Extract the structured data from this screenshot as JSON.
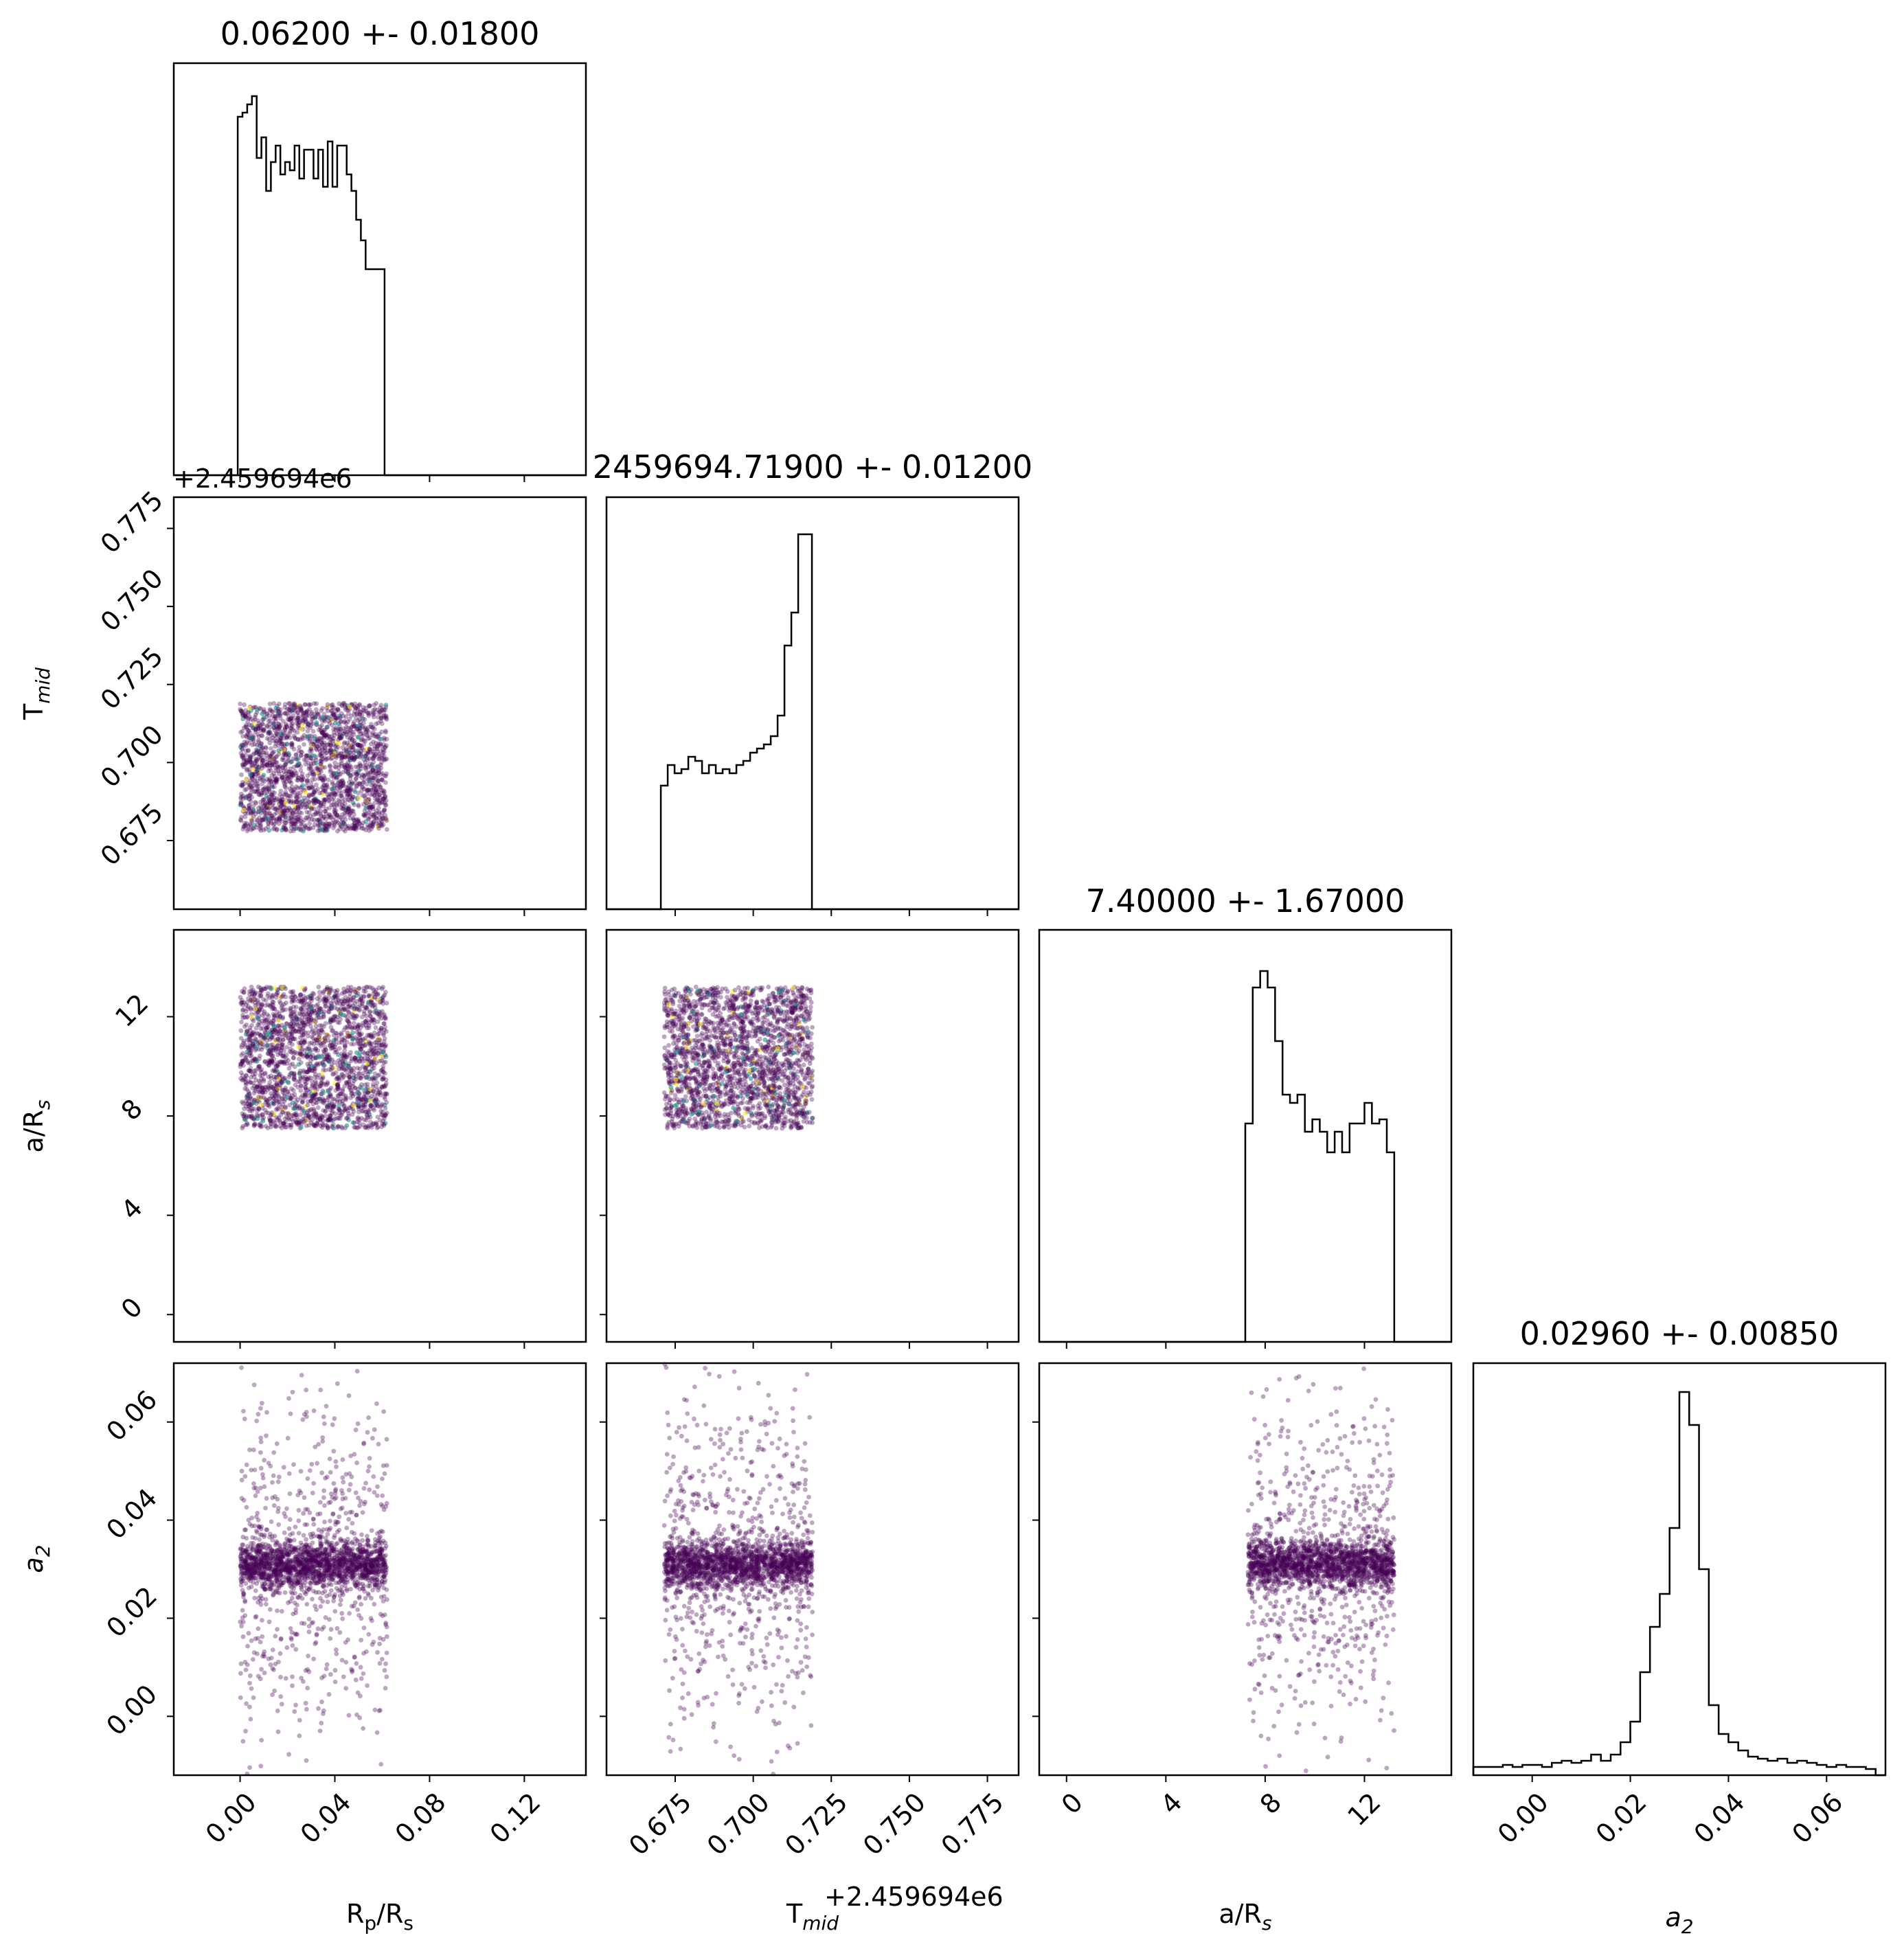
{
  "chart_data": [
    {
      "id": "rp_hist",
      "type": "histogram",
      "title": "0.06200 +- 0.01800",
      "xlim": [
        -0.028,
        0.146
      ],
      "x": [
        0.0,
        0.002,
        0.004,
        0.006,
        0.008,
        0.01,
        0.012,
        0.014,
        0.016,
        0.018,
        0.02,
        0.022,
        0.024,
        0.026,
        0.028,
        0.03,
        0.032,
        0.034,
        0.036,
        0.038,
        0.04,
        0.042,
        0.044,
        0.046,
        0.048,
        0.05,
        0.052,
        0.054,
        0.056,
        0.058,
        0.06
      ],
      "values": [
        0.87,
        0.88,
        0.9,
        0.92,
        0.77,
        0.82,
        0.69,
        0.76,
        0.8,
        0.73,
        0.76,
        0.74,
        0.8,
        0.72,
        0.79,
        0.79,
        0.72,
        0.79,
        0.7,
        0.81,
        0.7,
        0.8,
        0.8,
        0.73,
        0.69,
        0.62,
        0.57,
        0.5,
        0.5,
        0.5,
        0.5
      ],
      "ylim": [
        0,
        1
      ]
    },
    {
      "id": "tmid_hist",
      "type": "histogram",
      "title": "2459694.71900 +- 0.01200",
      "xlim": [
        0.653,
        0.785
      ],
      "x": [
        0.6715,
        0.6737,
        0.6759,
        0.6781,
        0.6803,
        0.6825,
        0.6847,
        0.6869,
        0.6891,
        0.6913,
        0.6935,
        0.6957,
        0.6979,
        0.7001,
        0.7023,
        0.7045,
        0.7067,
        0.7089,
        0.7111,
        0.7133,
        0.7155,
        0.7177
      ],
      "values": [
        0.3,
        0.35,
        0.33,
        0.34,
        0.37,
        0.36,
        0.33,
        0.35,
        0.33,
        0.34,
        0.33,
        0.35,
        0.36,
        0.38,
        0.39,
        0.4,
        0.42,
        0.47,
        0.64,
        0.72,
        0.91,
        0.91
      ],
      "ylim": [
        0,
        1
      ]
    },
    {
      "id": "ars_hist",
      "type": "histogram",
      "title": "7.40000 +- 1.67000",
      "xlim": [
        -1.1,
        15.5
      ],
      "x": [
        7.35,
        7.65,
        7.95,
        8.25,
        8.55,
        8.85,
        9.15,
        9.45,
        9.75,
        10.05,
        10.35,
        10.65,
        10.95,
        11.25,
        11.55,
        11.85,
        12.15,
        12.45,
        12.75,
        13.05
      ],
      "values": [
        0.53,
        0.86,
        0.9,
        0.86,
        0.73,
        0.6,
        0.58,
        0.6,
        0.51,
        0.54,
        0.51,
        0.46,
        0.51,
        0.46,
        0.53,
        0.53,
        0.58,
        0.53,
        0.54,
        0.46
      ],
      "ylim": [
        0,
        1
      ]
    },
    {
      "id": "a2_hist",
      "type": "histogram",
      "title": "0.02960 +- 0.00850",
      "xlim": [
        -0.012,
        0.072
      ],
      "x": [
        -0.011,
        -0.009,
        -0.007,
        -0.005,
        -0.003,
        -0.001,
        0.001,
        0.003,
        0.005,
        0.007,
        0.009,
        0.011,
        0.013,
        0.015,
        0.017,
        0.019,
        0.021,
        0.023,
        0.025,
        0.027,
        0.029,
        0.031,
        0.033,
        0.035,
        0.037,
        0.039,
        0.041,
        0.043,
        0.045,
        0.047,
        0.049,
        0.051,
        0.053,
        0.055,
        0.057,
        0.059,
        0.061,
        0.063,
        0.065,
        0.067,
        0.069
      ],
      "values": [
        0.02,
        0.02,
        0.02,
        0.025,
        0.02,
        0.025,
        0.025,
        0.02,
        0.03,
        0.035,
        0.03,
        0.035,
        0.05,
        0.035,
        0.05,
        0.08,
        0.13,
        0.25,
        0.36,
        0.44,
        0.6,
        0.93,
        0.85,
        0.5,
        0.17,
        0.1,
        0.08,
        0.06,
        0.045,
        0.04,
        0.035,
        0.04,
        0.03,
        0.035,
        0.03,
        0.025,
        0.02,
        0.025,
        0.02,
        0.02,
        0.015
      ],
      "ylim": [
        0,
        1
      ]
    },
    {
      "id": "tmid_vs_rp",
      "type": "scatter",
      "x_range_of_samples": [
        0.0,
        0.062
      ],
      "y_range_of_samples": [
        0.678,
        0.719
      ],
      "xlim": [
        -0.028,
        0.146
      ],
      "ylim": [
        0.653,
        0.785
      ]
    },
    {
      "id": "ars_vs_rp",
      "type": "scatter",
      "x_range_of_samples": [
        0.0,
        0.062
      ],
      "y_range_of_samples": [
        7.5,
        13.2
      ],
      "xlim": [
        -0.028,
        0.146
      ],
      "ylim": [
        -1.1,
        15.5
      ]
    },
    {
      "id": "ars_vs_tmid",
      "type": "scatter",
      "x_range_of_samples": [
        0.6715,
        0.719
      ],
      "y_range_of_samples": [
        7.5,
        13.2
      ],
      "xlim": [
        0.653,
        0.785
      ],
      "ylim": [
        -1.1,
        15.5
      ]
    },
    {
      "id": "a2_vs_rp",
      "type": "scatter",
      "x_range_of_samples": [
        0.0,
        0.062
      ],
      "y_center": 0.031,
      "xlim": [
        -0.028,
        0.146
      ],
      "ylim": [
        -0.012,
        0.072
      ]
    },
    {
      "id": "a2_vs_tmid",
      "type": "scatter",
      "x_range_of_samples": [
        0.6715,
        0.719
      ],
      "y_center": 0.031,
      "xlim": [
        0.653,
        0.785
      ],
      "ylim": [
        -0.012,
        0.072
      ]
    },
    {
      "id": "a2_vs_ars",
      "type": "scatter",
      "x_range_of_samples": [
        7.3,
        13.2
      ],
      "y_center": 0.031,
      "xlim": [
        -1.1,
        15.5
      ],
      "ylim": [
        -0.012,
        0.072
      ]
    }
  ],
  "axes": {
    "rp_ticks": [
      "0.00",
      "0.04",
      "0.08",
      "0.12"
    ],
    "rp_tick_values": [
      0.0,
      0.04,
      0.08,
      0.12
    ],
    "tmid_ticks": [
      "0.675",
      "0.700",
      "0.725",
      "0.750",
      "0.775"
    ],
    "tmid_tick_values": [
      0.675,
      0.7,
      0.725,
      0.75,
      0.775
    ],
    "ars_ticks": [
      "0",
      "4",
      "8",
      "12"
    ],
    "ars_tick_values": [
      0,
      4,
      8,
      12
    ],
    "a2_ticks": [
      "0.00",
      "0.02",
      "0.04",
      "0.06"
    ],
    "a2_tick_values": [
      0.0,
      0.02,
      0.04,
      0.06
    ],
    "offset_label": "+2.459694e6",
    "xlabel_rp_main": "R",
    "xlabel_rp_sub1": "p",
    "xlabel_rp_mid": "/R",
    "xlabel_rp_sub2": "s",
    "label_tmid_main": "T",
    "label_tmid_sub": "mid",
    "label_ars_main": "a/R",
    "label_ars_sub": "s",
    "label_a2_main": "a",
    "label_a2_sub": "2"
  },
  "colors": {
    "hist_line": "#000000",
    "scatter": "#440154",
    "scatter_hi_1": "#21918c",
    "scatter_hi_2": "#fde725"
  }
}
